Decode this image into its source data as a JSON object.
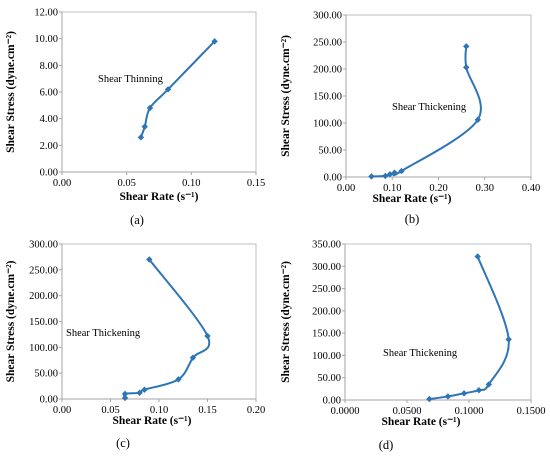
{
  "chart_data": [
    {
      "type": "line",
      "panel_label": "(a)",
      "xlabel": "Shear Rate (s⁻¹)",
      "ylabel": "Shear Stress (dyne.cm⁻²)",
      "annotation": "Shear Thinning",
      "xlim": [
        0,
        0.15
      ],
      "ylim": [
        0,
        12
      ],
      "x_ticks": [
        "0.00",
        "0.05",
        "0.10",
        "0.15"
      ],
      "y_ticks": [
        "0.00",
        "2.00",
        "4.00",
        "6.00",
        "8.00",
        "10.00",
        "12.00"
      ],
      "x": [
        0.061,
        0.064,
        0.068,
        0.082,
        0.118
      ],
      "y": [
        2.6,
        3.4,
        4.8,
        6.2,
        9.8
      ],
      "color": "#2E75B6",
      "marker": "diamond"
    },
    {
      "type": "line",
      "panel_label": "(b)",
      "xlabel": "Shear Rate (s⁻¹)",
      "ylabel": "Shear Stress (dyne.cm⁻²)",
      "annotation": "Shear Thickening",
      "xlim": [
        0,
        0.4
      ],
      "ylim": [
        0,
        300
      ],
      "x_ticks": [
        "0.00",
        "0.10",
        "0.20",
        "0.30",
        "0.40"
      ],
      "y_ticks": [
        "0.00",
        "50.00",
        "100.00",
        "150.00",
        "200.00",
        "250.00",
        "300.00"
      ],
      "x": [
        0.055,
        0.085,
        0.095,
        0.105,
        0.12,
        0.285,
        0.26,
        0.26
      ],
      "y": [
        1,
        2,
        5,
        8,
        11,
        106,
        203,
        242
      ],
      "color": "#2E75B6",
      "marker": "diamond"
    },
    {
      "type": "line",
      "panel_label": "(c)",
      "xlabel": "Shear Rate (s⁻¹)",
      "ylabel": "Shear Stress (dyne.cm⁻²)",
      "annotation": "Shear Thickening",
      "xlim": [
        0,
        0.2
      ],
      "ylim": [
        0,
        300
      ],
      "x_ticks": [
        "0.00",
        "0.05",
        "0.10",
        "0.15",
        "0.20"
      ],
      "y_ticks": [
        "0.00",
        "50.00",
        "100.00",
        "150.00",
        "200.00",
        "250.00",
        "300.00"
      ],
      "x": [
        0.065,
        0.065,
        0.08,
        0.085,
        0.12,
        0.135,
        0.15,
        0.09
      ],
      "y": [
        2,
        10,
        12,
        18,
        38,
        80,
        122,
        270
      ],
      "color": "#2E75B6",
      "marker": "diamond"
    },
    {
      "type": "line",
      "panel_label": "(d)",
      "xlabel": "Shear Rate (s⁻¹)",
      "ylabel": "Shear Stress (dyne.cm⁻²)",
      "annotation": "Shear Thickening",
      "xlim": [
        0,
        0.15
      ],
      "ylim": [
        0,
        350
      ],
      "x_ticks": [
        "0.0000",
        "0.0500",
        "0.1000",
        "0.1500"
      ],
      "y_ticks": [
        "0.00",
        "50.00",
        "100.00",
        "150.00",
        "200.00",
        "250.00",
        "300.00",
        "350.00"
      ],
      "x": [
        0.068,
        0.083,
        0.096,
        0.108,
        0.116,
        0.132,
        0.107
      ],
      "y": [
        2,
        8,
        15,
        22,
        35,
        136,
        322
      ],
      "color": "#2E75B6",
      "marker": "diamond"
    }
  ]
}
